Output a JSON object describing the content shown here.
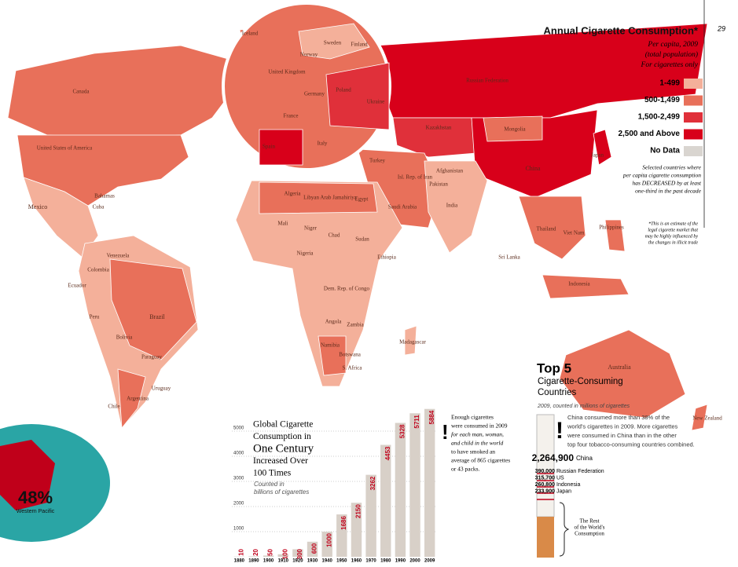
{
  "page_number": "29",
  "legend": {
    "title": "Annual Cigarette Consumption*",
    "subtitle": [
      "Per capita, 2009",
      "(total population)",
      "For cigarettes only"
    ],
    "items": [
      {
        "label": "1-499",
        "color": "#f4b09a"
      },
      {
        "label": "500-1,499",
        "color": "#e8705a"
      },
      {
        "label": "1,500-2,499",
        "color": "#e0303a"
      },
      {
        "label": "2,500 and Above",
        "color": "#d8001a"
      },
      {
        "label": "No Data",
        "color": "#d9d5d0"
      }
    ],
    "note": [
      "Selected countries where",
      "per capita cigarette consumption",
      "has DECREASED by at least",
      "one-third in the past decade"
    ],
    "footnote": [
      "*This is an estimate of the",
      "legal cigarette market that",
      "may be highly influenced by",
      "the changes in illicit trade"
    ]
  },
  "map_labels": [
    "Canada",
    "United States of America",
    "Mexico",
    "Cuba",
    "Bahamas",
    "Venezuela",
    "Colombia",
    "Ecuador",
    "Peru",
    "Brazil",
    "Bolivia",
    "Paraguay",
    "Uruguay",
    "Argentina",
    "Chile",
    "Iceland",
    "Russian Federation",
    "Kazakhstan",
    "Mongolia",
    "China",
    "Japan",
    "India",
    "Pakistan",
    "Afghanistan",
    "Isl. Rep. of Iran",
    "Turkey",
    "Saudi Arabia",
    "Egypt",
    "Algeria",
    "Libyan Arab Jamahiriya",
    "Mali",
    "Niger",
    "Chad",
    "Sudan",
    "Ethiopia",
    "Nigeria",
    "Dem. Rep. of Congo",
    "Angola",
    "Zambia",
    "Namibia",
    "Botswana",
    "S. Africa",
    "Madagascar",
    "Australia",
    "Indonesia",
    "Philippines",
    "Thailand",
    "Ukraine",
    "France",
    "Spain",
    "Germany",
    "Poland",
    "Italy",
    "United Kingdom",
    "Norway",
    "Sweden",
    "Finland",
    "New Zealand",
    "Sri Lanka",
    "Viet Nam"
  ],
  "inset": {
    "value_label": "48%",
    "region": "Western Pacific"
  },
  "chart_data": {
    "type": "bar",
    "title_lines": [
      "Global Cigarette",
      "Consumption in",
      "One Century",
      "Increased Over",
      "100 Times"
    ],
    "subtitle_lines": [
      "Counted in",
      "billions of cigarettes"
    ],
    "categories": [
      "1880",
      "1890",
      "1900",
      "1910",
      "1920",
      "1930",
      "1940",
      "1950",
      "1960",
      "1970",
      "1980",
      "1990",
      "2000",
      "2009"
    ],
    "values": [
      10,
      20,
      50,
      100,
      300,
      600,
      1000,
      1686,
      2150,
      3262,
      4453,
      5328,
      5711,
      5884
    ],
    "color": "#d8d0c8",
    "label_color": "#c0001a",
    "ylim": [
      0,
      6000
    ],
    "yticks": [
      1000,
      2000,
      3000,
      4000,
      5000
    ],
    "grid": true
  },
  "annotation": [
    "Enough cigarettes",
    "were consumed in 2009",
    "for each man, woman,",
    "and child in the world",
    "to have smoked an",
    "average of 865 cigarettes",
    "or 43 packs."
  ],
  "top5": {
    "title": "Top 5",
    "subtitle": [
      "Cigarette-Consuming",
      "Countries"
    ],
    "note": "2009, counted in millions of cigarettes",
    "text": [
      "China consumed more than 38% of the",
      "world's cigarettes in 2009. More cigarettes",
      "were consumed in China than in the other",
      "top four tobacco-consuming countries combined."
    ],
    "countries": [
      {
        "value": "2,264,900",
        "name": "China"
      },
      {
        "value": "390,000",
        "name": "Russian Federation"
      },
      {
        "value": "315,700",
        "name": "US"
      },
      {
        "value": "260,800",
        "name": "Indonesia"
      },
      {
        "value": "233,900",
        "name": "Japan"
      }
    ],
    "rest": [
      "The Rest",
      "of the World's",
      "Consumption"
    ]
  }
}
